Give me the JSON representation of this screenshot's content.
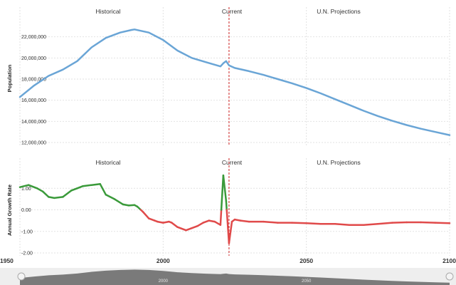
{
  "colors": {
    "population_line": "#6aa5d6",
    "growth_positive": "#3a9a3a",
    "growth_negative": "#e04a4a",
    "current_marker": "#cc2222",
    "grid": "#e2e2e2",
    "navigator_fill": "#7a7a7a"
  },
  "chart_data": [
    {
      "type": "line",
      "ylabel": "Population",
      "xlim": [
        1950,
        2100
      ],
      "ylim": [
        12000000,
        24000000
      ],
      "y_ticks": [
        "12,000,000",
        "14,000,000",
        "16,000,000",
        "18,000,000",
        "20,000,000",
        "22,000,000"
      ],
      "y_tick_values": [
        12000000,
        14000000,
        16000000,
        18000000,
        20000000,
        22000000
      ],
      "section_labels": [
        "Historical",
        "Current",
        "U.N. Projections"
      ],
      "current_year": 2023,
      "grid": true,
      "series": [
        {
          "x": [
            1950,
            1955,
            1960,
            1965,
            1970,
            1975,
            1980,
            1985,
            1989,
            1990,
            1995,
            2000,
            2005,
            2010,
            2015,
            2020,
            2021,
            2022,
            2023,
            2025,
            2030,
            2035,
            2040,
            2045,
            2050,
            2055,
            2060,
            2065,
            2070,
            2075,
            2080,
            2085,
            2090,
            2095,
            2100
          ],
          "y": [
            16300000,
            17400000,
            18300000,
            18900000,
            19700000,
            21000000,
            21900000,
            22400000,
            22650000,
            22700000,
            22400000,
            21700000,
            20700000,
            20000000,
            19600000,
            19200000,
            19500000,
            19700000,
            19300000,
            19050000,
            18750000,
            18400000,
            18000000,
            17600000,
            17150000,
            16650000,
            16100000,
            15550000,
            15000000,
            14500000,
            14050000,
            13650000,
            13300000,
            13000000,
            12700000
          ]
        }
      ]
    },
    {
      "type": "line",
      "ylabel": "Annual Growth Rate",
      "xlim": [
        1950,
        2100
      ],
      "ylim": [
        -2,
        2
      ],
      "y_ticks": [
        "-2.00",
        "-1.00",
        "0.00",
        "1.00"
      ],
      "y_tick_values": [
        -2,
        -1,
        0,
        1
      ],
      "x_ticks": [
        "1950",
        "2000",
        "2050",
        "2100"
      ],
      "x_tick_values": [
        1950,
        2000,
        2050,
        2100
      ],
      "section_labels": [
        "Historical",
        "Current",
        "U.N. Projections"
      ],
      "current_year": 2023,
      "grid": true,
      "series": [
        {
          "x": [
            1950,
            1953,
            1956,
            1958,
            1960,
            1962,
            1965,
            1968,
            1970,
            1972,
            1975,
            1978,
            1980,
            1983,
            1986,
            1988,
            1990,
            1991,
            1993,
            1995,
            1997,
            1998,
            2000,
            2002,
            2003,
            2005,
            2008,
            2010,
            2012,
            2014,
            2016,
            2018,
            2020,
            2021,
            2022,
            2023,
            2024,
            2025,
            2027,
            2030,
            2035,
            2040,
            2045,
            2050,
            2055,
            2060,
            2065,
            2070,
            2075,
            2080,
            2085,
            2090,
            2095,
            2100
          ],
          "y": [
            1.05,
            1.15,
            1.0,
            0.85,
            0.6,
            0.55,
            0.6,
            0.9,
            1.0,
            1.1,
            1.15,
            1.2,
            0.7,
            0.5,
            0.25,
            0.2,
            0.22,
            0.15,
            -0.1,
            -0.4,
            -0.5,
            -0.55,
            -0.6,
            -0.55,
            -0.6,
            -0.8,
            -0.95,
            -0.85,
            -0.75,
            -0.6,
            -0.5,
            -0.55,
            -0.7,
            1.6,
            0.4,
            -1.55,
            -0.55,
            -0.45,
            -0.5,
            -0.55,
            -0.55,
            -0.6,
            -0.6,
            -0.62,
            -0.65,
            -0.65,
            -0.7,
            -0.7,
            -0.65,
            -0.6,
            -0.58,
            -0.58,
            -0.6,
            -0.62
          ]
        }
      ]
    }
  ],
  "navigator": {
    "tick_labels": [
      "2000",
      "2050"
    ]
  }
}
